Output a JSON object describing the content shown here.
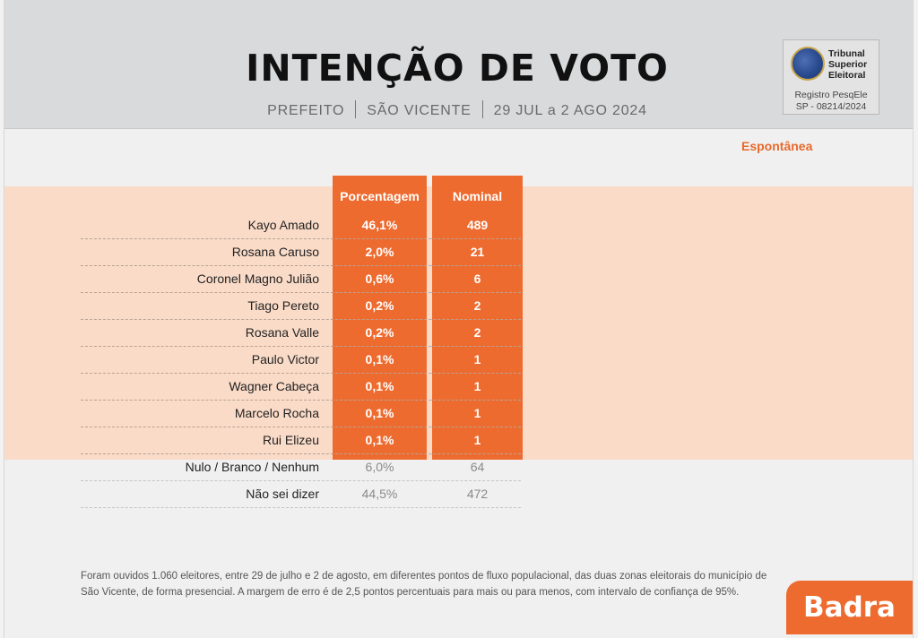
{
  "header": {
    "title": "INTENÇÃO DE VOTO",
    "office": "PREFEITO",
    "city": "SÃO VICENTE",
    "period": "29 JUL a 2 AGO 2024"
  },
  "tse": {
    "name_line1": "Tribunal",
    "name_line2": "Superior",
    "name_line3": "Eleitoral",
    "registry_line1": "Registro PesqEle",
    "registry_line2": "SP - 08214/2024"
  },
  "survey_type": "Espontânea",
  "chart_data": {
    "type": "table",
    "columns": [
      "Porcentagem",
      "Nominal"
    ],
    "rows": [
      {
        "name": "Kayo Amado",
        "pct": "46,1%",
        "nominal": "489",
        "highlight": true
      },
      {
        "name": "Rosana Caruso",
        "pct": "2,0%",
        "nominal": "21",
        "highlight": true
      },
      {
        "name": "Coronel Magno Julião",
        "pct": "0,6%",
        "nominal": "6",
        "highlight": true
      },
      {
        "name": "Tiago Pereto",
        "pct": "0,2%",
        "nominal": "2",
        "highlight": true
      },
      {
        "name": "Rosana Valle",
        "pct": "0,2%",
        "nominal": "2",
        "highlight": true
      },
      {
        "name": "Paulo Victor",
        "pct": "0,1%",
        "nominal": "1",
        "highlight": true
      },
      {
        "name": "Wagner Cabeça",
        "pct": "0,1%",
        "nominal": "1",
        "highlight": true
      },
      {
        "name": "Marcelo Rocha",
        "pct": "0,1%",
        "nominal": "1",
        "highlight": true
      },
      {
        "name": "Rui Elizeu",
        "pct": "0,1%",
        "nominal": "1",
        "highlight": true
      },
      {
        "name": "Nulo / Branco / Nenhum",
        "pct": "6,0%",
        "nominal": "64",
        "highlight": false
      },
      {
        "name": "Não sei dizer",
        "pct": "44,5%",
        "nominal": "472",
        "highlight": false
      }
    ]
  },
  "footnote": "Foram ouvidos 1.060 eleitores, entre 29 de julho e 2 de agosto, em diferentes pontos de fluxo populacional, das duas zonas eleitorais do município de São Vicente, de forma presencial. A margem de erro é de 2,5 pontos percentuais para mais ou para menos, com intervalo de confiança de 95%.",
  "brand": "Badra",
  "colors": {
    "accent": "#ee6b2f",
    "band": "#fadbc8",
    "header_bg": "#d9dadb"
  }
}
